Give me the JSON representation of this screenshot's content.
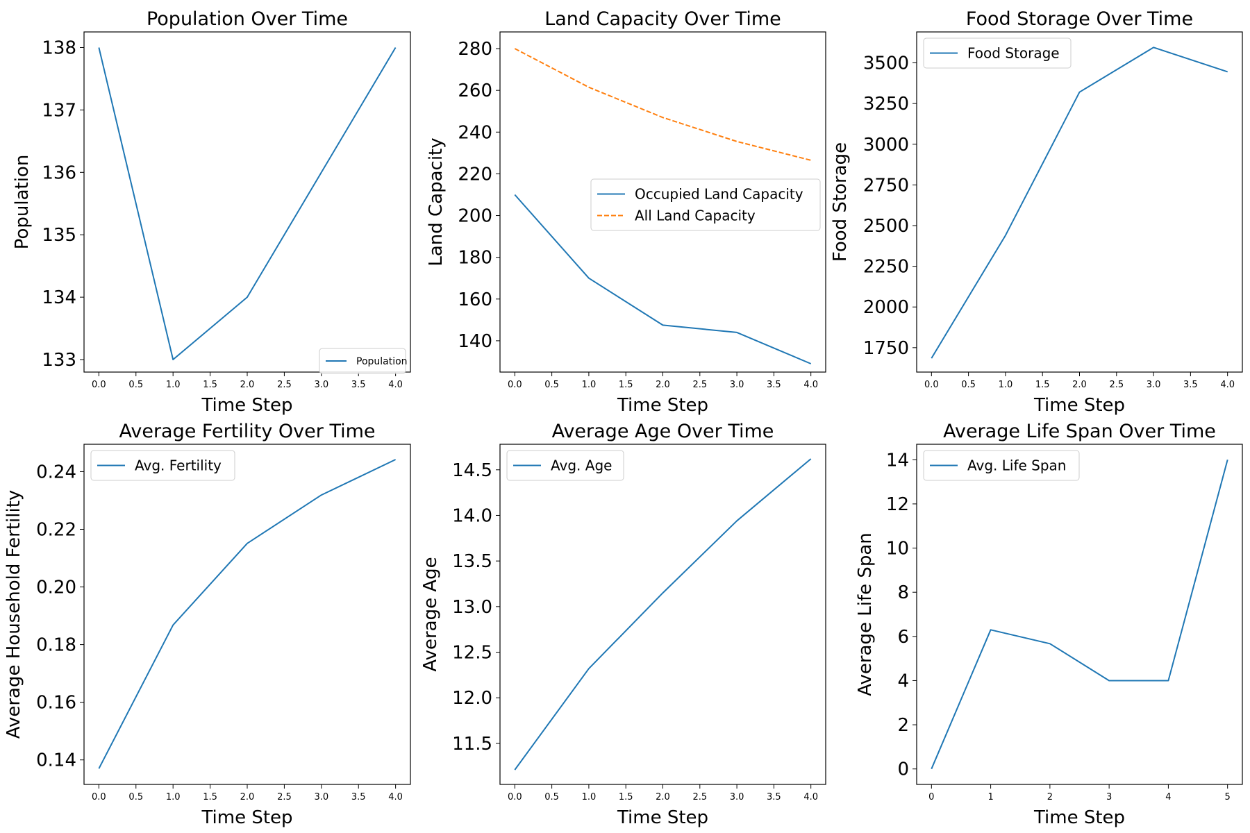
{
  "colors": {
    "blue": "#1f77b4",
    "orange": "#ff7f0e"
  },
  "chart_data": [
    {
      "type": "line",
      "title": "Population Over Time",
      "xlabel": "Time Step",
      "ylabel": "Population",
      "xlim": [
        -0.2,
        4.2
      ],
      "ylim": [
        132.8,
        138.25
      ],
      "xticks": [
        0.0,
        0.5,
        1.0,
        1.5,
        2.0,
        2.5,
        3.0,
        3.5,
        4.0
      ],
      "xtick_labels": [
        "0.0",
        "0.5",
        "1.0",
        "1.5",
        "2.0",
        "2.5",
        "3.0",
        "3.5",
        "4.0"
      ],
      "yticks": [
        133,
        134,
        135,
        136,
        137,
        138
      ],
      "ytick_labels": [
        "133",
        "134",
        "135",
        "136",
        "137",
        "138"
      ],
      "grid": false,
      "legend": "lower-right",
      "series": [
        {
          "name": "Population",
          "style": "solid",
          "color": "#1f77b4",
          "x": [
            0,
            1,
            2,
            3,
            4
          ],
          "y": [
            138,
            133,
            134,
            136,
            138
          ]
        }
      ]
    },
    {
      "type": "line",
      "title": "Land Capacity Over Time",
      "xlabel": "Time Step",
      "ylabel": "Land Capacity",
      "xlim": [
        -0.2,
        4.2
      ],
      "ylim": [
        125,
        288
      ],
      "xticks": [
        0.0,
        0.5,
        1.0,
        1.5,
        2.0,
        2.5,
        3.0,
        3.5,
        4.0
      ],
      "xtick_labels": [
        "0.0",
        "0.5",
        "1.0",
        "1.5",
        "2.0",
        "2.5",
        "3.0",
        "3.5",
        "4.0"
      ],
      "yticks": [
        140,
        160,
        180,
        200,
        220,
        240,
        260,
        280
      ],
      "ytick_labels": [
        "140",
        "160",
        "180",
        "200",
        "220",
        "240",
        "260",
        "280"
      ],
      "grid": false,
      "legend": "center-right",
      "series": [
        {
          "name": "Occupied Land Capacity",
          "style": "solid",
          "color": "#1f77b4",
          "x": [
            0,
            1,
            2,
            3,
            4
          ],
          "y": [
            210,
            170,
            147.5,
            144,
            129
          ]
        },
        {
          "name": "All Land Capacity",
          "style": "dashed",
          "color": "#ff7f0e",
          "x": [
            0,
            1,
            2,
            3,
            4
          ],
          "y": [
            280,
            261.5,
            247,
            235.5,
            226.5
          ]
        }
      ]
    },
    {
      "type": "line",
      "title": "Food Storage Over Time",
      "xlabel": "Time Step",
      "ylabel": "Food Storage",
      "xlim": [
        -0.2,
        4.2
      ],
      "ylim": [
        1600,
        3690
      ],
      "xticks": [
        0.0,
        0.5,
        1.0,
        1.5,
        2.0,
        2.5,
        3.0,
        3.5,
        4.0
      ],
      "xtick_labels": [
        "0.0",
        "0.5",
        "1.0",
        "1.5",
        "2.0",
        "2.5",
        "3.0",
        "3.5",
        "4.0"
      ],
      "yticks": [
        1750,
        2000,
        2250,
        2500,
        2750,
        3000,
        3250,
        3500
      ],
      "ytick_labels": [
        "1750",
        "2000",
        "2250",
        "2500",
        "2750",
        "3000",
        "3250",
        "3500"
      ],
      "grid": false,
      "legend": "upper-left",
      "series": [
        {
          "name": "Food Storage",
          "style": "solid",
          "color": "#1f77b4",
          "x": [
            0,
            1,
            2,
            3,
            4
          ],
          "y": [
            1685,
            2440,
            3320,
            3595,
            3445
          ]
        }
      ]
    },
    {
      "type": "line",
      "title": "Average Fertility Over Time",
      "xlabel": "Time Step",
      "ylabel": "Average Household Fertility",
      "xlim": [
        -0.2,
        4.2
      ],
      "ylim": [
        0.1315,
        0.2495
      ],
      "xticks": [
        0.0,
        0.5,
        1.0,
        1.5,
        2.0,
        2.5,
        3.0,
        3.5,
        4.0
      ],
      "xtick_labels": [
        "0.0",
        "0.5",
        "1.0",
        "1.5",
        "2.0",
        "2.5",
        "3.0",
        "3.5",
        "4.0"
      ],
      "yticks": [
        0.14,
        0.16,
        0.18,
        0.2,
        0.22,
        0.24
      ],
      "ytick_labels": [
        "0.14",
        "0.16",
        "0.18",
        "0.20",
        "0.22",
        "0.24"
      ],
      "grid": false,
      "legend": "upper-left",
      "series": [
        {
          "name": "Avg. Fertility",
          "style": "solid",
          "color": "#1f77b4",
          "x": [
            0,
            1,
            2,
            3,
            4
          ],
          "y": [
            0.137,
            0.1868,
            0.2151,
            0.2319,
            0.2442
          ]
        }
      ]
    },
    {
      "type": "line",
      "title": "Average Age Over Time",
      "xlabel": "Time Step",
      "ylabel": "Average Age",
      "xlim": [
        -0.2,
        4.2
      ],
      "ylim": [
        11.05,
        14.78
      ],
      "xticks": [
        0.0,
        0.5,
        1.0,
        1.5,
        2.0,
        2.5,
        3.0,
        3.5,
        4.0
      ],
      "xtick_labels": [
        "0.0",
        "0.5",
        "1.0",
        "1.5",
        "2.0",
        "2.5",
        "3.0",
        "3.5",
        "4.0"
      ],
      "yticks": [
        11.5,
        12.0,
        12.5,
        13.0,
        13.5,
        14.0,
        14.5
      ],
      "ytick_labels": [
        "11.5",
        "12.0",
        "12.5",
        "13.0",
        "13.5",
        "14.0",
        "14.5"
      ],
      "grid": false,
      "legend": "upper-left",
      "series": [
        {
          "name": "Avg. Age",
          "style": "solid",
          "color": "#1f77b4",
          "x": [
            0,
            1,
            2,
            3,
            4
          ],
          "y": [
            11.21,
            12.32,
            13.15,
            13.94,
            14.62
          ]
        }
      ]
    },
    {
      "type": "line",
      "title": "Average Life Span Over Time",
      "xlabel": "Time Step",
      "ylabel": "Average Life Span",
      "xlim": [
        -0.25,
        5.25
      ],
      "ylim": [
        -0.7,
        14.7
      ],
      "xticks": [
        0,
        1,
        2,
        3,
        4,
        5
      ],
      "xtick_labels": [
        "0",
        "1",
        "2",
        "3",
        "4",
        "5"
      ],
      "yticks": [
        0,
        2,
        4,
        6,
        8,
        10,
        12,
        14
      ],
      "ytick_labels": [
        "0",
        "2",
        "4",
        "6",
        "8",
        "10",
        "12",
        "14"
      ],
      "grid": false,
      "legend": "upper-left",
      "series": [
        {
          "name": "Avg. Life Span",
          "style": "solid",
          "color": "#1f77b4",
          "x": [
            0,
            1,
            2,
            3,
            4,
            5
          ],
          "y": [
            0,
            6.3,
            5.67,
            4.0,
            4.0,
            14.0
          ]
        }
      ]
    }
  ]
}
